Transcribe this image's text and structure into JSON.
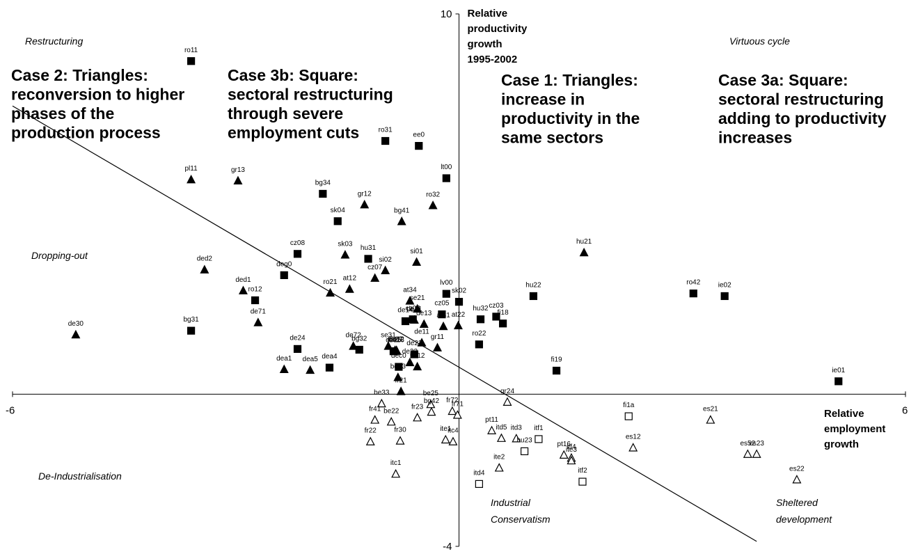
{
  "chart_data": {
    "type": "scatter",
    "xlabel": "Relative employment growth",
    "ylabel": "Relative productivity growth 1995-2002",
    "xlim": [
      -6,
      6
    ],
    "ylim": [
      -4,
      10
    ],
    "x_ticks": [
      "-6",
      "6"
    ],
    "y_ticks": [
      "10",
      "-4"
    ],
    "ylabel_lines": [
      "Relative",
      "productivity",
      "growth",
      "1995-2002"
    ],
    "xlabel_lines": [
      "Relative",
      "employment",
      "growth"
    ],
    "marker_legend": {
      "triangle_filled": "Triangles",
      "square_filled": "Square"
    },
    "quadrant_labels": [
      {
        "text": "Restructuring",
        "position": "top-left"
      },
      {
        "text": "Virtuous cycle",
        "position": "top-right"
      },
      {
        "text": "Dropping-out",
        "position": "middle-left"
      },
      {
        "text": "De-Industrialisation",
        "position": "bottom-left"
      },
      {
        "text": "Industrial",
        "position": "bottom-center"
      },
      {
        "text": "Conservatism",
        "position": "bottom-center"
      },
      {
        "text": "Sheltered",
        "position": "bottom-right"
      },
      {
        "text": "development",
        "position": "bottom-right"
      }
    ],
    "case_annotations": [
      {
        "name": "case-2",
        "lines": [
          "Case 2: Triangles:",
          "reconversion to higher",
          "phases of the",
          "production process"
        ]
      },
      {
        "name": "case-3b",
        "lines": [
          "Case 3b: Square:",
          "sectoral restructuring",
          "through severe",
          "employment cuts"
        ]
      },
      {
        "name": "case-1",
        "lines": [
          "Case 1: Triangles:",
          "increase in",
          "productivity in the",
          "same sectors"
        ]
      },
      {
        "name": "case-3a",
        "lines": [
          "Case 3a: Square:",
          "sectoral restructuring",
          "adding to productivity",
          "increases"
        ]
      }
    ],
    "trend_line": {
      "from": [
        -6,
        7.58
      ],
      "to": [
        4,
        -3.87
      ]
    },
    "series": [
      {
        "marker": "square_filled",
        "points": [
          {
            "label": "ro11",
            "x": -3.6,
            "y": 8.76
          },
          {
            "label": "ro31",
            "x": -0.99,
            "y": 6.66
          },
          {
            "label": "ee0",
            "x": -0.54,
            "y": 6.53
          },
          {
            "label": "lt00",
            "x": -0.17,
            "y": 5.68
          },
          {
            "label": "bg34",
            "x": -1.83,
            "y": 5.27
          },
          {
            "label": "sk04",
            "x": -1.63,
            "y": 4.55
          },
          {
            "label": "cz08",
            "x": -2.17,
            "y": 3.69
          },
          {
            "label": "hu31",
            "x": -1.22,
            "y": 3.56
          },
          {
            "label": "deg0",
            "x": -2.35,
            "y": 3.13
          },
          {
            "label": "ro12",
            "x": -2.74,
            "y": 2.47
          },
          {
            "label": "bg31",
            "x": -3.6,
            "y": 1.67
          },
          {
            "label": "lv00",
            "x": -0.17,
            "y": 2.64
          },
          {
            "label": "sk02",
            "x": 0,
            "y": 2.43
          },
          {
            "label": "cz05",
            "x": -0.23,
            "y": 2.1
          },
          {
            "label": "de14",
            "x": -0.72,
            "y": 1.92
          },
          {
            "label": "cz06",
            "x": -0.62,
            "y": 1.97
          },
          {
            "label": "hu32",
            "x": 0.29,
            "y": 1.97
          },
          {
            "label": "cz03",
            "x": 0.5,
            "y": 2.04
          },
          {
            "label": "fi18",
            "x": 0.59,
            "y": 1.86
          },
          {
            "label": "hu22",
            "x": 1.0,
            "y": 2.58
          },
          {
            "label": "ro42",
            "x": 3.15,
            "y": 2.65
          },
          {
            "label": "ie02",
            "x": 3.57,
            "y": 2.58
          },
          {
            "label": "de24",
            "x": -2.17,
            "y": 1.19
          },
          {
            "label": "bg32",
            "x": -1.34,
            "y": 1.17
          },
          {
            "label": "de25",
            "x": -0.88,
            "y": 1.13
          },
          {
            "label": "de22",
            "x": -0.6,
            "y": 1.05
          },
          {
            "label": "ro22",
            "x": 0.27,
            "y": 1.31
          },
          {
            "label": "dec0",
            "x": -0.81,
            "y": 0.72
          },
          {
            "label": "dea4",
            "x": -1.74,
            "y": 0.7
          },
          {
            "label": "fi19",
            "x": 1.31,
            "y": 0.62
          },
          {
            "label": "ie01",
            "x": 5.1,
            "y": 0.34
          }
        ]
      },
      {
        "marker": "triangle_filled",
        "points": [
          {
            "label": "pl11",
            "x": -3.6,
            "y": 5.64
          },
          {
            "label": "gr13",
            "x": -2.97,
            "y": 5.61
          },
          {
            "label": "gr12",
            "x": -1.27,
            "y": 4.98
          },
          {
            "label": "ro32",
            "x": -0.35,
            "y": 4.96
          },
          {
            "label": "bg41",
            "x": -0.77,
            "y": 4.54
          },
          {
            "label": "sk03",
            "x": -1.53,
            "y": 3.66
          },
          {
            "label": "si01",
            "x": -0.57,
            "y": 3.47
          },
          {
            "label": "si02",
            "x": -0.99,
            "y": 3.25
          },
          {
            "label": "cz07",
            "x": -1.13,
            "y": 3.05
          },
          {
            "label": "ded2",
            "x": -3.42,
            "y": 3.27
          },
          {
            "label": "ded1",
            "x": -2.9,
            "y": 2.72
          },
          {
            "label": "ro21",
            "x": -1.73,
            "y": 2.66
          },
          {
            "label": "at12",
            "x": -1.47,
            "y": 2.76
          },
          {
            "label": "hu21",
            "x": 1.68,
            "y": 3.72
          },
          {
            "label": "de71",
            "x": -2.7,
            "y": 1.88
          },
          {
            "label": "de30",
            "x": -5.15,
            "y": 1.56
          },
          {
            "label": "at34",
            "x": -0.66,
            "y": 2.45
          },
          {
            "label": "se21",
            "x": -0.56,
            "y": 2.24
          },
          {
            "label": "de21",
            "x": -0.6,
            "y": 1.95
          },
          {
            "label": "de13",
            "x": -0.47,
            "y": 1.84
          },
          {
            "label": "at31",
            "x": -0.21,
            "y": 1.78
          },
          {
            "label": "at22",
            "x": -0.01,
            "y": 1.8
          },
          {
            "label": "de11",
            "x": -0.5,
            "y": 1.35
          },
          {
            "label": "gr11",
            "x": -0.29,
            "y": 1.22
          },
          {
            "label": "se31",
            "x": -0.95,
            "y": 1.26
          },
          {
            "label": "de27",
            "x": -0.86,
            "y": 1.15
          },
          {
            "label": "de26",
            "x": -0.84,
            "y": 1.13
          },
          {
            "label": "de12",
            "x": -0.84,
            "y": 1.15
          },
          {
            "label": "de72",
            "x": -1.42,
            "y": 1.26
          },
          {
            "label": "de23",
            "x": -0.66,
            "y": 0.83
          },
          {
            "label": "se12",
            "x": -0.56,
            "y": 0.72
          },
          {
            "label": "dea1",
            "x": -2.35,
            "y": 0.65
          },
          {
            "label": "dea5",
            "x": -2.0,
            "y": 0.63
          },
          {
            "label": "be23",
            "x": -0.82,
            "y": 0.44
          },
          {
            "label": "fr21",
            "x": -0.78,
            "y": 0.07
          }
        ]
      },
      {
        "marker": "triangle_open",
        "points": [
          {
            "label": "gr24",
            "x": 0.65,
            "y": -0.21
          },
          {
            "label": "be33",
            "x": -1.04,
            "y": -0.25
          },
          {
            "label": "be25",
            "x": -0.38,
            "y": -0.27
          },
          {
            "label": "fr72",
            "x": -0.09,
            "y": -0.45
          },
          {
            "label": "bg42",
            "x": -0.37,
            "y": -0.47
          },
          {
            "label": "fr71",
            "x": -0.02,
            "y": -0.55
          },
          {
            "label": "fr23",
            "x": -0.56,
            "y": -0.62
          },
          {
            "label": "be22",
            "x": -0.91,
            "y": -0.73
          },
          {
            "label": "fr41",
            "x": -1.13,
            "y": -0.68
          },
          {
            "label": "es21",
            "x": 3.38,
            "y": -0.68
          },
          {
            "label": "pt11",
            "x": 0.44,
            "y": -0.96
          },
          {
            "label": "itd5",
            "x": 0.57,
            "y": -1.16
          },
          {
            "label": "itd3",
            "x": 0.77,
            "y": -1.17
          },
          {
            "label": "ite1",
            "x": -0.18,
            "y": -1.2
          },
          {
            "label": "itc4",
            "x": -0.08,
            "y": -1.25
          },
          {
            "label": "fr22",
            "x": -1.19,
            "y": -1.25
          },
          {
            "label": "fr30",
            "x": -0.79,
            "y": -1.23
          },
          {
            "label": "es12",
            "x": 2.34,
            "y": -1.41
          },
          {
            "label": "pt16",
            "x": 1.41,
            "y": -1.6
          },
          {
            "label": "itf4",
            "x": 1.51,
            "y": -1.68
          },
          {
            "label": "ite3",
            "x": 1.51,
            "y": -1.75
          },
          {
            "label": "es52",
            "x": 3.88,
            "y": -1.58
          },
          {
            "label": "es23",
            "x": 4.0,
            "y": -1.58
          },
          {
            "label": "ite2",
            "x": 0.54,
            "y": -1.94
          },
          {
            "label": "itc1",
            "x": -0.85,
            "y": -2.1
          },
          {
            "label": "es22",
            "x": 4.54,
            "y": -2.25
          }
        ]
      },
      {
        "marker": "square_open",
        "points": [
          {
            "label": "fi1a",
            "x": 2.28,
            "y": -0.58
          },
          {
            "label": "itf1",
            "x": 1.07,
            "y": -1.18
          },
          {
            "label": "hu23",
            "x": 0.88,
            "y": -1.5
          },
          {
            "label": "itd4",
            "x": 0.27,
            "y": -2.36
          },
          {
            "label": "itf2",
            "x": 1.66,
            "y": -2.3
          }
        ]
      }
    ]
  }
}
